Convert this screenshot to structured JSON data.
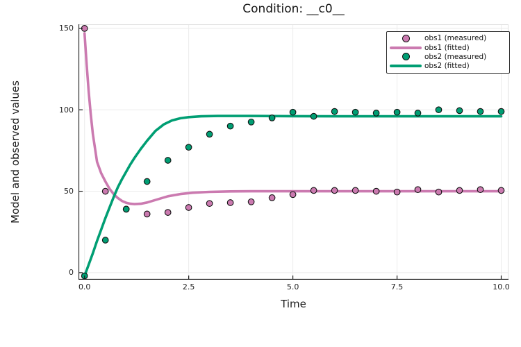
{
  "title": "Condition: __c0__",
  "axes": {
    "xlabel": "Time",
    "ylabel": "Model and observed values"
  },
  "colors": {
    "obs1": "#CB7AB0",
    "obs2": "#009E73",
    "grid": "#ebebeb",
    "frame_light": "#e0e0e0",
    "axis": "#1a1a1a",
    "marker_edge": "#111111",
    "legend_border": "#2b2b2b",
    "background": "#ffffff"
  },
  "legend": {
    "position": "top-right",
    "entries": [
      {
        "label": "obs1 (measured)",
        "swatch": "marker",
        "color": "#CB7AB0"
      },
      {
        "label": "obs1 (fitted)",
        "swatch": "line",
        "color": "#CB7AB0"
      },
      {
        "label": "obs2 (measured)",
        "swatch": "marker",
        "color": "#009E73"
      },
      {
        "label": "obs2 (fitted)",
        "swatch": "line",
        "color": "#009E73"
      }
    ]
  },
  "chart_data": {
    "type": "line",
    "title": "Condition: __c0__",
    "xlabel": "Time",
    "ylabel": "Model and observed values",
    "xlim": [
      -0.145,
      10.175
    ],
    "ylim": [
      -4.3,
      152.5
    ],
    "grid": true,
    "legend_position": "top-right",
    "xticks": {
      "values": [
        0.0,
        2.5,
        5.0,
        7.5,
        10.0
      ],
      "labels": [
        "0.0",
        "2.5",
        "5.0",
        "7.5",
        "10.0"
      ]
    },
    "yticks": {
      "values": [
        0,
        50,
        100,
        150
      ],
      "labels": [
        "0",
        "50",
        "100",
        "150"
      ]
    },
    "series": [
      {
        "name": "obs1 (measured)",
        "type": "scatter",
        "color": "#CB7AB0",
        "x": [
          0,
          0.5,
          1.0,
          1.5,
          2.0,
          2.5,
          3.0,
          3.5,
          4.0,
          4.5,
          5.0,
          5.5,
          6.0,
          6.5,
          7.0,
          7.5,
          8.0,
          8.5,
          9.0,
          9.5,
          10.0
        ],
        "y": [
          150,
          50,
          39,
          36,
          37,
          40,
          42.5,
          43,
          43.5,
          46,
          48,
          50.5,
          50.5,
          50.5,
          50,
          49.5,
          51,
          49.5,
          50.5,
          51,
          50.5
        ]
      },
      {
        "name": "obs1 (fitted)",
        "type": "line",
        "color": "#CB7AB0",
        "x": [
          0,
          0.05,
          0.1,
          0.15,
          0.2,
          0.3,
          0.4,
          0.5,
          0.6,
          0.7,
          0.8,
          0.9,
          1.0,
          1.1,
          1.2,
          1.35,
          1.5,
          1.7,
          2.0,
          2.3,
          2.6,
          3.0,
          3.5,
          4.0,
          5.0,
          6.0,
          7.0,
          8.0,
          9.0,
          10.0
        ],
        "y": [
          147,
          128,
          111,
          97,
          85,
          68,
          61,
          56,
          51.5,
          48.2,
          45.8,
          44,
          42.9,
          42.3,
          42.1,
          42.3,
          43.1,
          44.6,
          46.9,
          48.3,
          49.1,
          49.6,
          49.9,
          50,
          50,
          50,
          50,
          50,
          50,
          50
        ]
      },
      {
        "name": "obs2 (measured)",
        "type": "scatter",
        "color": "#009E73",
        "x": [
          0,
          0.5,
          1.0,
          1.5,
          2.0,
          2.5,
          3.0,
          3.5,
          4.0,
          4.5,
          5.0,
          5.5,
          6.0,
          6.5,
          7.0,
          7.5,
          8.0,
          8.5,
          9.0,
          9.5,
          10.0
        ],
        "y": [
          -2,
          20,
          39,
          56,
          69,
          77,
          85,
          90,
          92.5,
          95,
          98.5,
          96,
          99,
          98.5,
          98,
          98.5,
          98,
          100,
          99.5,
          99,
          99
        ]
      },
      {
        "name": "obs2 (fitted)",
        "type": "line",
        "color": "#009E73",
        "x": [
          0,
          0.1,
          0.2,
          0.3,
          0.4,
          0.5,
          0.6,
          0.7,
          0.8,
          0.9,
          1.0,
          1.1,
          1.2,
          1.35,
          1.5,
          1.7,
          1.9,
          2.1,
          2.3,
          2.5,
          2.8,
          3.2,
          3.6,
          4.0,
          5.0,
          6.0,
          7.0,
          8.0,
          9.0,
          10.0
        ],
        "y": [
          -2,
          5,
          12,
          19.5,
          26.5,
          33.5,
          40,
          46.5,
          52.5,
          57.5,
          62,
          66.5,
          70.5,
          76,
          81,
          87,
          91,
          93.5,
          94.8,
          95.5,
          96,
          96.2,
          96.2,
          96.2,
          96.1,
          96,
          96,
          96,
          96,
          96
        ]
      }
    ]
  }
}
